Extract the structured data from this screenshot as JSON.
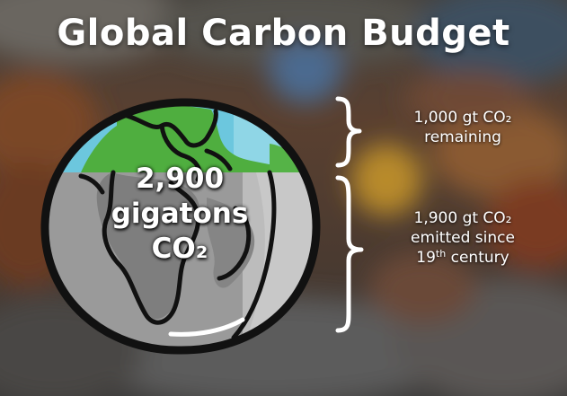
{
  "title": "Global Carbon Budget",
  "globe": {
    "line1": "2,900",
    "line2": "gigatons",
    "line3": "CO₂"
  },
  "remaining": {
    "line1": "1,000 gt CO₂",
    "line2": "remaining"
  },
  "emitted": {
    "line1": "1,900 gt CO₂",
    "line2": "emitted since",
    "century_num": "19",
    "century_sup": "th",
    "century_word": " century"
  },
  "colors": {
    "ocean": "#6cc7de",
    "land_top": "#4fae3f",
    "ocean_gray": "#9a9a9a",
    "land_gray": "#8a8a8a",
    "outline": "#111111"
  }
}
